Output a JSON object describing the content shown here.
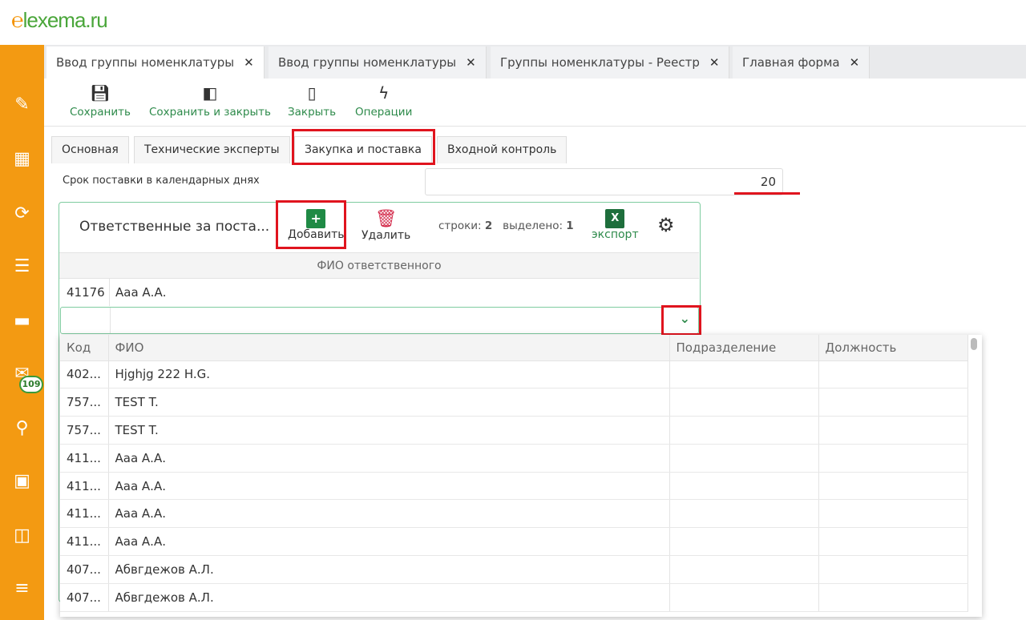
{
  "logo": {
    "text": "lexema.ru"
  },
  "sidebar": {
    "icons": [
      "pencil-icon",
      "qr-code-icon",
      "sync-icon",
      "download-list-icon",
      "folder-icon",
      "mail-icon",
      "search-icon",
      "calendar-icon",
      "schedule-icon",
      "checklist-icon"
    ],
    "mail_badge": "109",
    "accent": "#f39a12"
  },
  "tabs": [
    {
      "label": "Ввод группы номенклатуры",
      "active": true
    },
    {
      "label": "Ввод группы номенклатуры"
    },
    {
      "label": "Группы номенклатуры - Реестр"
    },
    {
      "label": "Главная форма"
    }
  ],
  "toolbar": {
    "save": "Сохранить",
    "save_close": "Сохранить и закрыть",
    "close": "Закрыть",
    "operations": "Операции"
  },
  "inner_tabs": [
    "Основная",
    "Технические эксперты",
    "Закупка и поставка",
    "Входной контроль"
  ],
  "field": {
    "label": "Срок поставки в календарных днях",
    "value": "20"
  },
  "panel": {
    "title": "Ответственные за поста...",
    "add": "Добавить",
    "delete": "Удалить",
    "rows_label": "строки:",
    "rows": "2",
    "selected_label": "выделено:",
    "selected": "1",
    "export": "экспорт",
    "column": "ФИО ответственного",
    "row": {
      "code": "41176",
      "name": "Ааа А.А."
    }
  },
  "dropdown": {
    "headers": [
      "Код",
      "ФИО",
      "Подразделение",
      "Должность"
    ],
    "rows": [
      [
        "402...",
        "Hjghjg 222 H.G."
      ],
      [
        "757...",
        "TEST T."
      ],
      [
        "757...",
        "TEST T."
      ],
      [
        "411...",
        "Ааа А.А."
      ],
      [
        "411...",
        "Ааа А.А."
      ],
      [
        "411...",
        "Ааа А.А."
      ],
      [
        "411...",
        "Ааа А.А."
      ],
      [
        "407...",
        "Абвгдежов А.Л."
      ],
      [
        "407...",
        "Абвгдежов А.Л."
      ]
    ]
  }
}
